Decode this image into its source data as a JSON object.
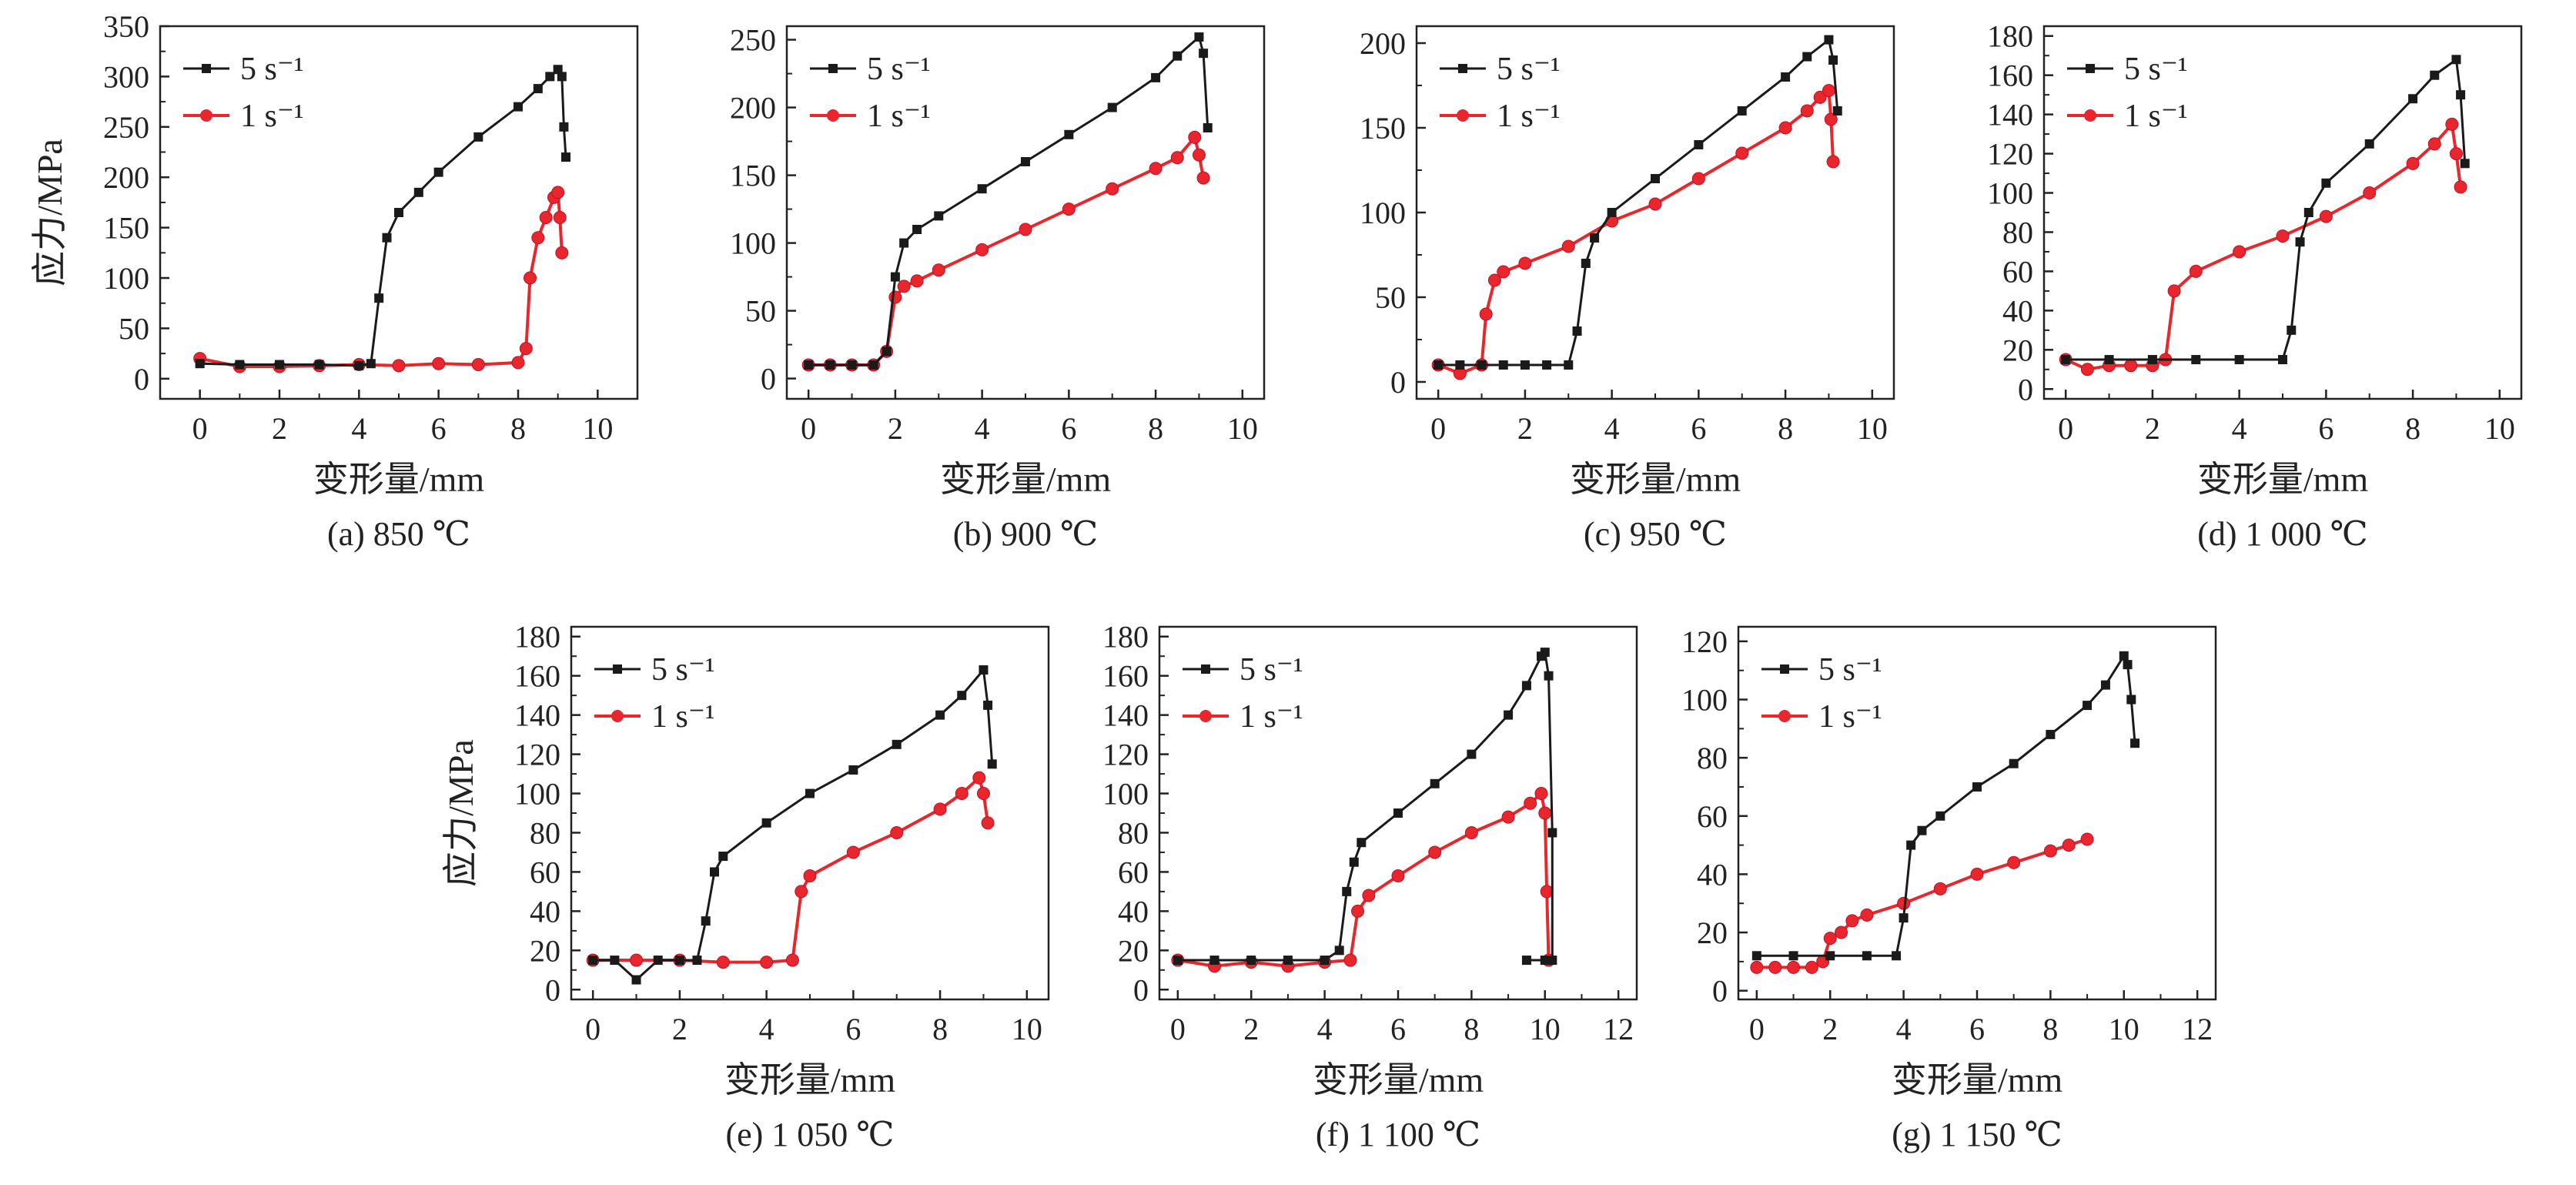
{
  "figure": {
    "ylabel_shared": "应力/MPa",
    "xlabel_shared": "变形量/mm"
  },
  "colors": {
    "series_5": "#1a1a1a",
    "series_1": "#e8262b"
  },
  "chart_data": [
    {
      "type": "line",
      "caption": "(a) 850 ℃",
      "xlabel": "变形量/mm",
      "ylabel": "应力/MPa",
      "xlim": [
        -1,
        11
      ],
      "ylim": [
        -20,
        350
      ],
      "xticks": [
        0,
        2,
        4,
        6,
        8,
        10
      ],
      "yticks": [
        0,
        50,
        100,
        150,
        200,
        250,
        300,
        350
      ],
      "legend": "top-left",
      "series": [
        {
          "name": "5 s⁻¹",
          "x": [
            0,
            1,
            2,
            3,
            4,
            4.3,
            4.5,
            4.7,
            5.0,
            5.5,
            6,
            7,
            8,
            8.5,
            8.8,
            9.0,
            9.1,
            9.15,
            9.2
          ],
          "y": [
            15,
            14,
            14,
            14,
            13,
            15,
            80,
            140,
            165,
            185,
            205,
            240,
            270,
            288,
            300,
            307,
            300,
            250,
            220
          ]
        },
        {
          "name": "1 s⁻¹",
          "x": [
            0,
            1,
            2,
            3,
            4,
            5,
            6,
            7,
            8,
            8.2,
            8.3,
            8.5,
            8.7,
            8.9,
            9.0,
            9.05,
            9.1
          ],
          "y": [
            20,
            12,
            12,
            13,
            14,
            13,
            15,
            14,
            16,
            30,
            100,
            140,
            160,
            180,
            185,
            160,
            125
          ]
        }
      ]
    },
    {
      "type": "line",
      "caption": "(b) 900 ℃",
      "xlabel": "变形量/mm",
      "ylabel": "",
      "xlim": [
        -0.5,
        10.5
      ],
      "ylim": [
        -15,
        260
      ],
      "xticks": [
        0,
        2,
        4,
        6,
        8,
        10
      ],
      "yticks": [
        0,
        50,
        100,
        150,
        200,
        250
      ],
      "legend": "top-left",
      "series": [
        {
          "name": "5 s⁻¹",
          "x": [
            0,
            0.5,
            1,
            1.5,
            1.8,
            2.0,
            2.2,
            2.5,
            3,
            4,
            5,
            6,
            7,
            8,
            8.5,
            9.0,
            9.1,
            9.2
          ],
          "y": [
            10,
            10,
            10,
            10,
            20,
            75,
            100,
            110,
            120,
            140,
            160,
            180,
            200,
            222,
            238,
            252,
            240,
            185
          ]
        },
        {
          "name": "1 s⁻¹",
          "x": [
            0,
            0.5,
            1,
            1.5,
            1.8,
            2.0,
            2.2,
            2.5,
            3,
            4,
            5,
            6,
            7,
            8,
            8.5,
            8.9,
            9.0,
            9.1
          ],
          "y": [
            10,
            10,
            10,
            10,
            20,
            60,
            68,
            72,
            80,
            95,
            110,
            125,
            140,
            155,
            163,
            178,
            165,
            148
          ]
        }
      ]
    },
    {
      "type": "line",
      "caption": "(c) 950 ℃",
      "xlabel": "变形量/mm",
      "ylabel": "",
      "xlim": [
        -0.5,
        10.5
      ],
      "ylim": [
        -10,
        210
      ],
      "xticks": [
        0,
        2,
        4,
        6,
        8,
        10
      ],
      "yticks": [
        0,
        50,
        100,
        150,
        200
      ],
      "legend": "top-left",
      "series": [
        {
          "name": "5 s⁻¹",
          "x": [
            0,
            0.5,
            1,
            1.5,
            2,
            2.5,
            3,
            3.2,
            3.4,
            3.6,
            4,
            5,
            6,
            7,
            8,
            8.5,
            9.0,
            9.1,
            9.2
          ],
          "y": [
            10,
            10,
            10,
            10,
            10,
            10,
            10,
            30,
            70,
            85,
            100,
            120,
            140,
            160,
            180,
            192,
            202,
            190,
            160
          ]
        },
        {
          "name": "1 s⁻¹",
          "x": [
            0,
            0.5,
            1.0,
            1.1,
            1.3,
            1.5,
            2,
            3,
            4,
            5,
            6,
            7,
            8,
            8.5,
            8.8,
            9.0,
            9.05,
            9.1
          ],
          "y": [
            10,
            5,
            10,
            40,
            60,
            65,
            70,
            80,
            95,
            105,
            120,
            135,
            150,
            160,
            168,
            172,
            155,
            130
          ]
        }
      ]
    },
    {
      "type": "line",
      "caption": "(d) 1 000 ℃",
      "xlabel": "变形量/mm",
      "ylabel": "",
      "xlim": [
        -0.5,
        10.5
      ],
      "ylim": [
        -5,
        185
      ],
      "xticks": [
        0,
        2,
        4,
        6,
        8,
        10
      ],
      "yticks": [
        0,
        20,
        40,
        60,
        80,
        100,
        120,
        140,
        160,
        180
      ],
      "legend": "top-left",
      "series": [
        {
          "name": "5 s⁻¹",
          "x": [
            0,
            1,
            2,
            3,
            4,
            5,
            5.2,
            5.4,
            5.6,
            6,
            7,
            8,
            8.5,
            9.0,
            9.1,
            9.2
          ],
          "y": [
            15,
            15,
            15,
            15,
            15,
            15,
            30,
            75,
            90,
            105,
            125,
            148,
            160,
            168,
            150,
            115
          ]
        },
        {
          "name": "1 s⁻¹",
          "x": [
            0,
            0.5,
            1,
            1.5,
            2,
            2.3,
            2.5,
            3,
            4,
            5,
            6,
            7,
            8,
            8.5,
            8.9,
            9.0,
            9.1
          ],
          "y": [
            15,
            10,
            12,
            12,
            12,
            15,
            50,
            60,
            70,
            78,
            88,
            100,
            115,
            125,
            135,
            120,
            103
          ]
        }
      ]
    },
    {
      "type": "line",
      "caption": "(e) 1 050 ℃",
      "xlabel": "变形量/mm",
      "ylabel": "应力/MPa",
      "xlim": [
        -0.5,
        10.5
      ],
      "ylim": [
        -5,
        185
      ],
      "xticks": [
        0,
        2,
        4,
        6,
        8,
        10
      ],
      "yticks": [
        0,
        20,
        40,
        60,
        80,
        100,
        120,
        140,
        160,
        180
      ],
      "legend": "top-left",
      "series": [
        {
          "name": "5 s⁻¹",
          "x": [
            0,
            0.5,
            1,
            1.5,
            2,
            2.4,
            2.6,
            2.8,
            3,
            4,
            5,
            6,
            7,
            8,
            8.5,
            9.0,
            9.1,
            9.2
          ],
          "y": [
            15,
            15,
            5,
            15,
            15,
            15,
            35,
            60,
            68,
            85,
            100,
            112,
            125,
            140,
            150,
            163,
            145,
            115
          ]
        },
        {
          "name": "1 s⁻¹",
          "x": [
            0,
            1,
            2,
            3,
            4,
            4.6,
            4.8,
            5,
            6,
            7,
            8,
            8.5,
            8.9,
            9.0,
            9.1
          ],
          "y": [
            15,
            15,
            15,
            14,
            14,
            15,
            50,
            58,
            70,
            80,
            92,
            100,
            108,
            100,
            85
          ]
        }
      ]
    },
    {
      "type": "line",
      "caption": "(f) 1 100 ℃",
      "xlabel": "变形量/mm",
      "ylabel": "",
      "xlim": [
        -0.5,
        12.5
      ],
      "ylim": [
        -5,
        185
      ],
      "xticks": [
        0,
        2,
        4,
        6,
        8,
        10,
        12
      ],
      "yticks": [
        0,
        20,
        40,
        60,
        80,
        100,
        120,
        140,
        160,
        180
      ],
      "legend": "top-left",
      "series": [
        {
          "name": "5 s⁻¹",
          "x": [
            0,
            1,
            2,
            3,
            4,
            4.4,
            4.6,
            4.8,
            5,
            6,
            7,
            8,
            9,
            9.5,
            9.9,
            10.0,
            10.1,
            10.2,
            10.2,
            10.0,
            9.5
          ],
          "y": [
            15,
            15,
            15,
            15,
            15,
            20,
            50,
            65,
            75,
            90,
            105,
            120,
            140,
            155,
            170,
            172,
            160,
            80,
            15,
            15,
            15
          ]
        },
        {
          "name": "1 s⁻¹",
          "x": [
            0,
            1,
            2,
            3,
            4,
            4.7,
            4.9,
            5.2,
            6,
            7,
            8,
            9,
            9.6,
            9.9,
            10.0,
            10.05,
            10.1
          ],
          "y": [
            15,
            12,
            14,
            12,
            14,
            15,
            40,
            48,
            58,
            70,
            80,
            88,
            95,
            100,
            90,
            50,
            15
          ]
        }
      ]
    },
    {
      "type": "line",
      "caption": "(g) 1 150 ℃",
      "xlabel": "变形量/mm",
      "ylabel": "",
      "xlim": [
        -0.5,
        12.5
      ],
      "ylim": [
        -3,
        125
      ],
      "xticks": [
        0,
        2,
        4,
        6,
        8,
        10,
        12
      ],
      "yticks": [
        0,
        20,
        40,
        60,
        80,
        100,
        120
      ],
      "legend": "top-left",
      "series": [
        {
          "name": "5 s⁻¹",
          "x": [
            0,
            1,
            2,
            3,
            3.8,
            4.0,
            4.2,
            4.5,
            5,
            6,
            7,
            8,
            9,
            9.5,
            10.0,
            10.1,
            10.2,
            10.3
          ],
          "y": [
            12,
            12,
            12,
            12,
            12,
            25,
            50,
            55,
            60,
            70,
            78,
            88,
            98,
            105,
            115,
            112,
            100,
            85
          ]
        },
        {
          "name": "1 s⁻¹",
          "x": [
            0,
            0.5,
            1,
            1.5,
            1.8,
            2.0,
            2.3,
            2.6,
            3,
            4,
            5,
            6,
            7,
            8,
            8.5,
            9.0
          ],
          "y": [
            8,
            8,
            8,
            8,
            10,
            18,
            20,
            24,
            26,
            30,
            35,
            40,
            44,
            48,
            50,
            52
          ]
        }
      ]
    }
  ]
}
